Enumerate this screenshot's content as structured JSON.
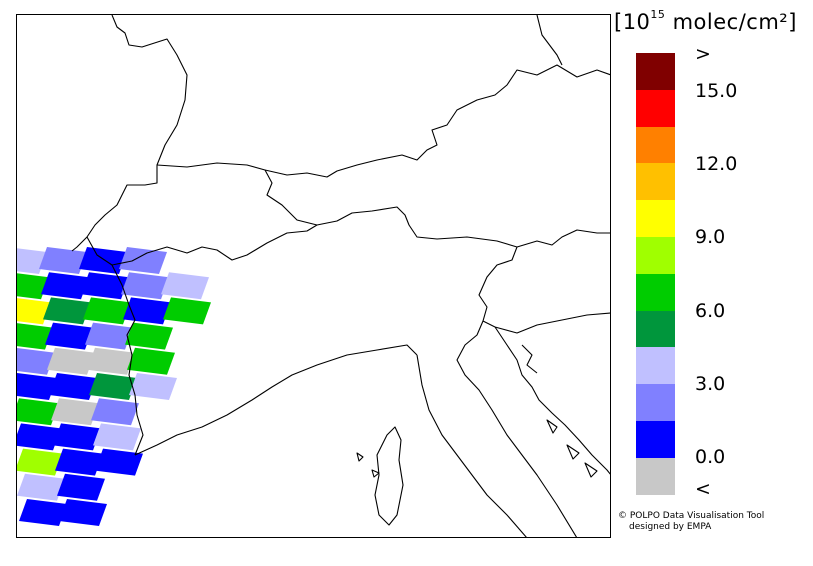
{
  "legend": {
    "title_main": "[10",
    "title_exp": "15",
    "title_unit": " molec/cm²]",
    "over_label": ">",
    "under_label": "<",
    "tick_labels": [
      "15.0",
      "12.0",
      "9.0",
      "6.0",
      "3.0",
      "0.0"
    ],
    "colors": [
      "#800000",
      "#ff0000",
      "#ff8000",
      "#ffc000",
      "#ffff00",
      "#a0ff00",
      "#00cc00",
      "#00963c",
      "#c0c0ff",
      "#8080ff",
      "#0000ff",
      "#c8c8c8"
    ],
    "color_names": [
      "dark red",
      "red",
      "orange",
      "amber",
      "yellow",
      "yellow-green",
      "green",
      "dark green",
      "light lavender",
      "periwinkle",
      "blue",
      "grey (below range)"
    ]
  },
  "credit": {
    "line1": "© POLPO Data Visualisation Tool",
    "line2": "designed by EMPA"
  },
  "swath_pixels": [
    [
      "c3",
      "c2",
      "c1",
      "c2"
    ],
    [
      "c6",
      "c1",
      "c1",
      "c2",
      "c3"
    ],
    [
      "c8",
      "c5",
      "c6",
      "c1",
      "c6"
    ],
    [
      "c6",
      "c1",
      "c2",
      "c6"
    ],
    [
      "c2",
      "c0",
      "c0",
      "c6"
    ],
    [
      "c1",
      "c1",
      "c5",
      "c3"
    ],
    [
      "c6",
      "c0",
      "c2"
    ],
    [
      "c1",
      "c1",
      "c3"
    ],
    [
      "c9",
      "c1",
      "c1"
    ],
    [
      "c3",
      "c1"
    ],
    [
      "c1",
      "c1"
    ]
  ]
}
